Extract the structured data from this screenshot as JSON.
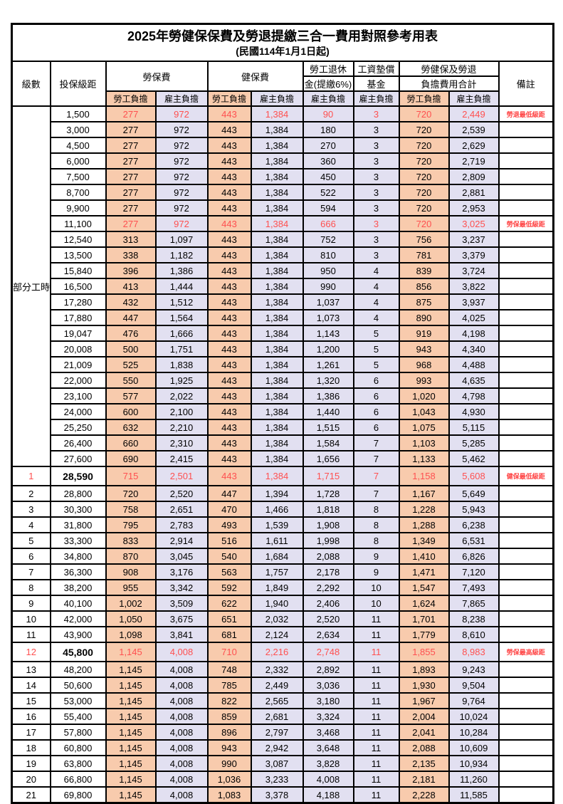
{
  "title": "2025年勞健保保費及勞退提繳三合一費用對照參考用表",
  "subtitle": "(民國114年1月1日起)",
  "header": {
    "level": "級數",
    "salary": "投保級距",
    "labor_ins": "勞保費",
    "health_ins": "健保費",
    "pension_l1": "勞工退休",
    "pension_l2": "金(提繳6%)",
    "fund_l1": "工資墊償",
    "fund_l2": "基金",
    "total_l1": "勞健保及勞退",
    "total_l2": "負擔費用合計",
    "remark": "備註",
    "employee_share": "勞工負擔",
    "employer_share": "雇主負擔"
  },
  "part_time_label": "部分工時",
  "colors": {
    "employee_bg": "#F8CBAD",
    "employer_bg": "#E2E0F1",
    "highlight_text": "#FF5050",
    "remark_text": "#FF4444",
    "border": "#000000"
  },
  "rows": [
    {
      "lv": "",
      "sal": "1,500",
      "v": [
        "277",
        "972",
        "443",
        "1,384",
        "90",
        "3",
        "720",
        "2,449"
      ],
      "rm": "勞退最低級距",
      "red": true
    },
    {
      "lv": "",
      "sal": "3,000",
      "v": [
        "277",
        "972",
        "443",
        "1,384",
        "180",
        "3",
        "720",
        "2,539"
      ],
      "rm": ""
    },
    {
      "lv": "",
      "sal": "4,500",
      "v": [
        "277",
        "972",
        "443",
        "1,384",
        "270",
        "3",
        "720",
        "2,629"
      ],
      "rm": ""
    },
    {
      "lv": "",
      "sal": "6,000",
      "v": [
        "277",
        "972",
        "443",
        "1,384",
        "360",
        "3",
        "720",
        "2,719"
      ],
      "rm": ""
    },
    {
      "lv": "",
      "sal": "7,500",
      "v": [
        "277",
        "972",
        "443",
        "1,384",
        "450",
        "3",
        "720",
        "2,809"
      ],
      "rm": ""
    },
    {
      "lv": "",
      "sal": "8,700",
      "v": [
        "277",
        "972",
        "443",
        "1,384",
        "522",
        "3",
        "720",
        "2,881"
      ],
      "rm": ""
    },
    {
      "lv": "",
      "sal": "9,900",
      "v": [
        "277",
        "972",
        "443",
        "1,384",
        "594",
        "3",
        "720",
        "2,953"
      ],
      "rm": ""
    },
    {
      "lv": "",
      "sal": "11,100",
      "v": [
        "277",
        "972",
        "443",
        "1,384",
        "666",
        "3",
        "720",
        "3,025"
      ],
      "rm": "勞保最低級距",
      "red": true
    },
    {
      "lv": "",
      "sal": "12,540",
      "v": [
        "313",
        "1,097",
        "443",
        "1,384",
        "752",
        "3",
        "756",
        "3,237"
      ],
      "rm": ""
    },
    {
      "lv": "",
      "sal": "13,500",
      "v": [
        "338",
        "1,182",
        "443",
        "1,384",
        "810",
        "3",
        "781",
        "3,379"
      ],
      "rm": ""
    },
    {
      "lv": "",
      "sal": "15,840",
      "v": [
        "396",
        "1,386",
        "443",
        "1,384",
        "950",
        "4",
        "839",
        "3,724"
      ],
      "rm": ""
    },
    {
      "lv": "",
      "sal": "16,500",
      "v": [
        "413",
        "1,444",
        "443",
        "1,384",
        "990",
        "4",
        "856",
        "3,822"
      ],
      "rm": ""
    },
    {
      "lv": "",
      "sal": "17,280",
      "v": [
        "432",
        "1,512",
        "443",
        "1,384",
        "1,037",
        "4",
        "875",
        "3,937"
      ],
      "rm": ""
    },
    {
      "lv": "",
      "sal": "17,880",
      "v": [
        "447",
        "1,564",
        "443",
        "1,384",
        "1,073",
        "4",
        "890",
        "4,025"
      ],
      "rm": ""
    },
    {
      "lv": "",
      "sal": "19,047",
      "v": [
        "476",
        "1,666",
        "443",
        "1,384",
        "1,143",
        "5",
        "919",
        "4,198"
      ],
      "rm": ""
    },
    {
      "lv": "",
      "sal": "20,008",
      "v": [
        "500",
        "1,751",
        "443",
        "1,384",
        "1,200",
        "5",
        "943",
        "4,340"
      ],
      "rm": ""
    },
    {
      "lv": "",
      "sal": "21,009",
      "v": [
        "525",
        "1,838",
        "443",
        "1,384",
        "1,261",
        "5",
        "968",
        "4,488"
      ],
      "rm": ""
    },
    {
      "lv": "",
      "sal": "22,000",
      "v": [
        "550",
        "1,925",
        "443",
        "1,384",
        "1,320",
        "6",
        "993",
        "4,635"
      ],
      "rm": ""
    },
    {
      "lv": "",
      "sal": "23,100",
      "v": [
        "577",
        "2,022",
        "443",
        "1,384",
        "1,386",
        "6",
        "1,020",
        "4,798"
      ],
      "rm": ""
    },
    {
      "lv": "",
      "sal": "24,000",
      "v": [
        "600",
        "2,100",
        "443",
        "1,384",
        "1,440",
        "6",
        "1,043",
        "4,930"
      ],
      "rm": ""
    },
    {
      "lv": "",
      "sal": "25,250",
      "v": [
        "632",
        "2,210",
        "443",
        "1,384",
        "1,515",
        "6",
        "1,075",
        "5,115"
      ],
      "rm": ""
    },
    {
      "lv": "",
      "sal": "26,400",
      "v": [
        "660",
        "2,310",
        "443",
        "1,384",
        "1,584",
        "7",
        "1,103",
        "5,285"
      ],
      "rm": ""
    },
    {
      "lv": "",
      "sal": "27,600",
      "v": [
        "690",
        "2,415",
        "443",
        "1,384",
        "1,656",
        "7",
        "1,133",
        "5,462"
      ],
      "rm": ""
    },
    {
      "lv": "1",
      "sal": "28,590",
      "v": [
        "715",
        "2,501",
        "443",
        "1,384",
        "1,715",
        "7",
        "1,158",
        "5,608"
      ],
      "rm": "健保最低級距",
      "red": true,
      "bold": true
    },
    {
      "lv": "2",
      "sal": "28,800",
      "v": [
        "720",
        "2,520",
        "447",
        "1,394",
        "1,728",
        "7",
        "1,167",
        "5,649"
      ],
      "rm": ""
    },
    {
      "lv": "3",
      "sal": "30,300",
      "v": [
        "758",
        "2,651",
        "470",
        "1,466",
        "1,818",
        "8",
        "1,228",
        "5,943"
      ],
      "rm": ""
    },
    {
      "lv": "4",
      "sal": "31,800",
      "v": [
        "795",
        "2,783",
        "493",
        "1,539",
        "1,908",
        "8",
        "1,288",
        "6,238"
      ],
      "rm": ""
    },
    {
      "lv": "5",
      "sal": "33,300",
      "v": [
        "833",
        "2,914",
        "516",
        "1,611",
        "1,998",
        "8",
        "1,349",
        "6,531"
      ],
      "rm": ""
    },
    {
      "lv": "6",
      "sal": "34,800",
      "v": [
        "870",
        "3,045",
        "540",
        "1,684",
        "2,088",
        "9",
        "1,410",
        "6,826"
      ],
      "rm": ""
    },
    {
      "lv": "7",
      "sal": "36,300",
      "v": [
        "908",
        "3,176",
        "563",
        "1,757",
        "2,178",
        "9",
        "1,471",
        "7,120"
      ],
      "rm": ""
    },
    {
      "lv": "8",
      "sal": "38,200",
      "v": [
        "955",
        "3,342",
        "592",
        "1,849",
        "2,292",
        "10",
        "1,547",
        "7,493"
      ],
      "rm": ""
    },
    {
      "lv": "9",
      "sal": "40,100",
      "v": [
        "1,002",
        "3,509",
        "622",
        "1,940",
        "2,406",
        "10",
        "1,624",
        "7,865"
      ],
      "rm": ""
    },
    {
      "lv": "10",
      "sal": "42,000",
      "v": [
        "1,050",
        "3,675",
        "651",
        "2,032",
        "2,520",
        "11",
        "1,701",
        "8,238"
      ],
      "rm": ""
    },
    {
      "lv": "11",
      "sal": "43,900",
      "v": [
        "1,098",
        "3,841",
        "681",
        "2,124",
        "2,634",
        "11",
        "1,779",
        "8,610"
      ],
      "rm": ""
    },
    {
      "lv": "12",
      "sal": "45,800",
      "v": [
        "1,145",
        "4,008",
        "710",
        "2,216",
        "2,748",
        "11",
        "1,855",
        "8,983"
      ],
      "rm": "勞保最高級距",
      "red": true,
      "bold": true
    },
    {
      "lv": "13",
      "sal": "48,200",
      "v": [
        "1,145",
        "4,008",
        "748",
        "2,332",
        "2,892",
        "11",
        "1,893",
        "9,243"
      ],
      "rm": ""
    },
    {
      "lv": "14",
      "sal": "50,600",
      "v": [
        "1,145",
        "4,008",
        "785",
        "2,449",
        "3,036",
        "11",
        "1,930",
        "9,504"
      ],
      "rm": ""
    },
    {
      "lv": "15",
      "sal": "53,000",
      "v": [
        "1,145",
        "4,008",
        "822",
        "2,565",
        "3,180",
        "11",
        "1,967",
        "9,764"
      ],
      "rm": ""
    },
    {
      "lv": "16",
      "sal": "55,400",
      "v": [
        "1,145",
        "4,008",
        "859",
        "2,681",
        "3,324",
        "11",
        "2,004",
        "10,024"
      ],
      "rm": ""
    },
    {
      "lv": "17",
      "sal": "57,800",
      "v": [
        "1,145",
        "4,008",
        "896",
        "2,797",
        "3,468",
        "11",
        "2,041",
        "10,284"
      ],
      "rm": ""
    },
    {
      "lv": "18",
      "sal": "60,800",
      "v": [
        "1,145",
        "4,008",
        "943",
        "2,942",
        "3,648",
        "11",
        "2,088",
        "10,609"
      ],
      "rm": ""
    },
    {
      "lv": "19",
      "sal": "63,800",
      "v": [
        "1,145",
        "4,008",
        "990",
        "3,087",
        "3,828",
        "11",
        "2,135",
        "10,934"
      ],
      "rm": ""
    },
    {
      "lv": "20",
      "sal": "66,800",
      "v": [
        "1,145",
        "4,008",
        "1,036",
        "3,233",
        "4,008",
        "11",
        "2,181",
        "11,260"
      ],
      "rm": ""
    },
    {
      "lv": "21",
      "sal": "69,800",
      "v": [
        "1,145",
        "4,008",
        "1,083",
        "3,378",
        "4,188",
        "11",
        "2,228",
        "11,585"
      ],
      "rm": ""
    }
  ]
}
